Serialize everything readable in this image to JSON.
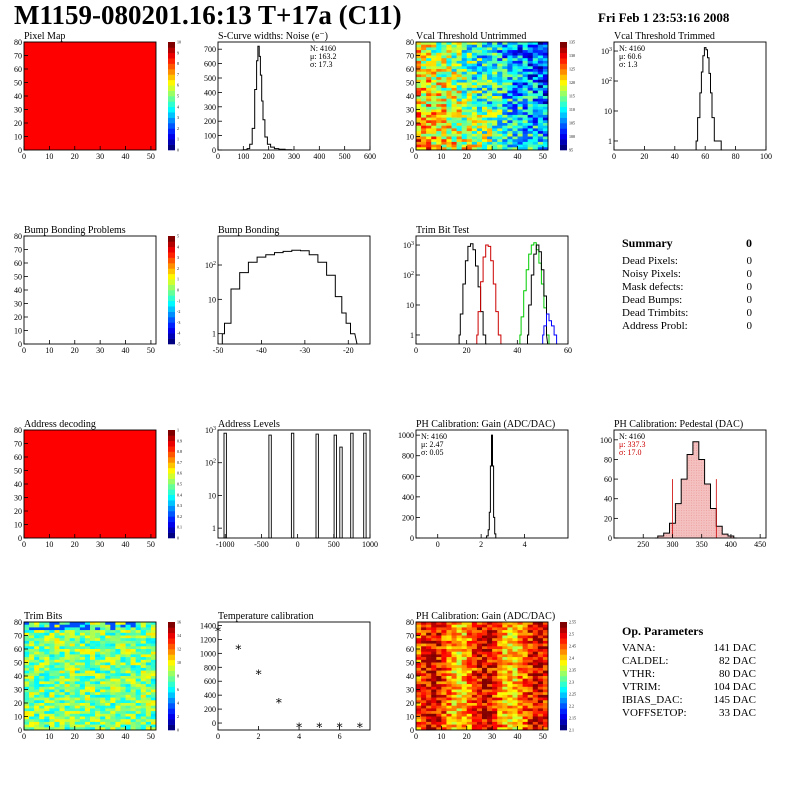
{
  "header": {
    "title": "M1159-080201.16:13 T+17a (C11)",
    "date": "Fri Feb  1 23:53:16 2008"
  },
  "summary": {
    "title": "Summary",
    "total": "0",
    "rows": [
      {
        "label": "Dead Pixels:",
        "value": "0"
      },
      {
        "label": "Noisy Pixels:",
        "value": "0"
      },
      {
        "label": "Mask defects:",
        "value": "0"
      },
      {
        "label": "Dead Bumps:",
        "value": "0"
      },
      {
        "label": "Dead Trimbits:",
        "value": "0"
      },
      {
        "label": "Address Probl:",
        "value": "0"
      }
    ]
  },
  "op_params": {
    "title": "Op. Parameters",
    "rows": [
      {
        "label": "VANA:",
        "value": "141 DAC"
      },
      {
        "label": "CALDEL:",
        "value": "82 DAC"
      },
      {
        "label": "VTHR:",
        "value": "80 DAC"
      },
      {
        "label": "VTRIM:",
        "value": "104 DAC"
      },
      {
        "label": "IBIAS_DAC:",
        "value": "145 DAC"
      },
      {
        "label": "VOFFSETOP:",
        "value": "33 DAC"
      }
    ]
  },
  "chart_data": [
    {
      "id": "pixel-map",
      "type": "heatmap",
      "title": "Pixel Map",
      "xlim": [
        0,
        52
      ],
      "ylim": [
        0,
        80
      ],
      "xticks": [
        0,
        10,
        20,
        30,
        40,
        50
      ],
      "yticks": [
        0,
        10,
        20,
        30,
        40,
        50,
        60,
        70,
        80
      ],
      "fill": "uniform",
      "color": "#ff0000",
      "palette": {
        "min": 0,
        "max": 10,
        "ticks": [
          0,
          1,
          2,
          3,
          4,
          5,
          6,
          7,
          8,
          9,
          10
        ]
      }
    },
    {
      "id": "scurve-noise",
      "type": "line",
      "title": "S-Curve widths: Noise (e⁻)",
      "xlim": [
        0,
        600
      ],
      "ylim": [
        0,
        750
      ],
      "xticks": [
        0,
        100,
        200,
        300,
        400,
        500,
        600
      ],
      "yticks": [
        0,
        100,
        200,
        300,
        400,
        500,
        600,
        700
      ],
      "x": [
        90,
        110,
        120,
        130,
        140,
        150,
        155,
        160,
        165,
        170,
        175,
        180,
        190,
        200,
        215,
        230,
        250,
        280,
        300
      ],
      "y": [
        0,
        2,
        10,
        40,
        150,
        420,
        620,
        720,
        650,
        520,
        340,
        210,
        90,
        40,
        20,
        10,
        5,
        2,
        0
      ],
      "stats": [
        "N: 4160",
        "μ: 163.2",
        "σ: 17.3"
      ]
    },
    {
      "id": "vcal-untrimmed",
      "type": "heatmap",
      "title": "Vcal Threshold Untrimmed",
      "xlim": [
        0,
        52
      ],
      "ylim": [
        0,
        80
      ],
      "xticks": [
        0,
        10,
        20,
        30,
        40,
        50
      ],
      "yticks": [
        0,
        10,
        20,
        30,
        40,
        50,
        60,
        70,
        80
      ],
      "fill": "noise-gradient",
      "palette": {
        "min": 95,
        "max": 135,
        "ticks": [
          95,
          100,
          105,
          110,
          115,
          120,
          125,
          130,
          135
        ]
      }
    },
    {
      "id": "vcal-trimmed",
      "type": "line",
      "title": "Vcal Threshold Trimmed",
      "xlim": [
        0,
        100
      ],
      "ylim": [
        0.5,
        2000
      ],
      "log_y": true,
      "xticks": [
        0,
        20,
        40,
        60,
        80,
        100
      ],
      "yticks": [
        1,
        10,
        100,
        1000
      ],
      "x": [
        54,
        56,
        57,
        58,
        59,
        60,
        61,
        62,
        63,
        64,
        65,
        67,
        70,
        71
      ],
      "y": [
        1,
        6,
        40,
        200,
        700,
        1300,
        1100,
        600,
        180,
        40,
        6,
        1,
        1,
        0.5
      ],
      "stats": [
        "N: 4160",
        "μ: 60.6",
        "σ:  1.3"
      ]
    },
    {
      "id": "bump-bonding-problems",
      "type": "heatmap",
      "title": "Bump Bonding Problems",
      "xlim": [
        0,
        52
      ],
      "ylim": [
        0,
        80
      ],
      "xticks": [
        0,
        10,
        20,
        30,
        40,
        50
      ],
      "yticks": [
        0,
        10,
        20,
        30,
        40,
        50,
        60,
        70,
        80
      ],
      "fill": "empty",
      "palette": {
        "min": -5,
        "max": 5,
        "ticks": [
          -5,
          -4,
          -3,
          -2,
          -1,
          0,
          1,
          2,
          3,
          4,
          5
        ]
      }
    },
    {
      "id": "bump-bonding",
      "type": "line",
      "title": "Bump Bonding",
      "xlim": [
        -50,
        -15
      ],
      "ylim": [
        0.5,
        700
      ],
      "log_y": true,
      "xticks": [
        -50,
        -40,
        -30,
        -20
      ],
      "yticks": [
        1,
        10,
        100
      ],
      "x": [
        -49,
        -48,
        -46,
        -44,
        -42,
        -40,
        -38,
        -36,
        -34,
        -32,
        -30,
        -28,
        -26,
        -24,
        -22,
        -21,
        -20,
        -19,
        -18
      ],
      "y": [
        1,
        2,
        20,
        60,
        120,
        170,
        200,
        230,
        250,
        270,
        260,
        200,
        120,
        50,
        12,
        4,
        2,
        1,
        1
      ]
    },
    {
      "id": "trim-bit-test",
      "type": "line",
      "title": "Trim Bit Test",
      "xlim": [
        0,
        60
      ],
      "ylim": [
        0.5,
        2000
      ],
      "log_y": true,
      "xticks": [
        0,
        20,
        40,
        60
      ],
      "yticks": [
        1,
        10,
        100,
        1000
      ],
      "series": [
        {
          "color": "#000000",
          "x": [
            17,
            18,
            19,
            20,
            21,
            22,
            23,
            24,
            25,
            26,
            27,
            28
          ],
          "y": [
            1,
            5,
            50,
            300,
            900,
            1100,
            700,
            200,
            40,
            6,
            1,
            0.5
          ]
        },
        {
          "color": "#cc0000",
          "x": [
            24,
            25,
            26,
            27,
            28,
            29,
            30,
            31,
            32,
            33,
            34
          ],
          "y": [
            1,
            6,
            60,
            400,
            1000,
            900,
            300,
            50,
            6,
            1,
            0.5
          ]
        },
        {
          "color": "#00cc00",
          "x": [
            41,
            42,
            43,
            44,
            45,
            46,
            47,
            48,
            49,
            50,
            51,
            52,
            53
          ],
          "y": [
            1,
            4,
            30,
            150,
            500,
            1000,
            1200,
            700,
            250,
            50,
            8,
            1,
            0.5
          ]
        },
        {
          "color": "#000000",
          "x": [
            44,
            45,
            46,
            47,
            48,
            49,
            50,
            51,
            52
          ],
          "y": [
            1,
            10,
            100,
            500,
            1000,
            600,
            150,
            20,
            1
          ]
        },
        {
          "color": "#0000ff",
          "x": [
            50,
            51,
            52,
            53,
            54,
            55,
            56
          ],
          "y": [
            1,
            2,
            5,
            3,
            2,
            1,
            0.5
          ]
        }
      ]
    },
    {
      "id": "address-decoding",
      "type": "heatmap",
      "title": "Address decoding",
      "xlim": [
        0,
        52
      ],
      "ylim": [
        0,
        80
      ],
      "xticks": [
        0,
        10,
        20,
        30,
        40,
        50
      ],
      "yticks": [
        0,
        10,
        20,
        30,
        40,
        50,
        60,
        70,
        80
      ],
      "fill": "uniform",
      "color": "#ff0000",
      "palette": {
        "min": 0,
        "max": 1,
        "ticks": [
          0,
          0.1,
          0.2,
          0.3,
          0.4,
          0.5,
          0.6,
          0.7,
          0.8,
          0.9,
          1
        ]
      }
    },
    {
      "id": "address-levels",
      "type": "bar",
      "title": "Address Levels",
      "xlim": [
        -1100,
        1000
      ],
      "ylim": [
        0.5,
        1000
      ],
      "log_y": true,
      "xticks": [
        -1000,
        -500,
        0,
        500,
        1000
      ],
      "yticks": [
        1,
        10,
        100,
        1000
      ],
      "spikes": [
        {
          "x": -1000,
          "y": 800
        },
        {
          "x": -380,
          "y": 700
        },
        {
          "x": -70,
          "y": 800
        },
        {
          "x": 270,
          "y": 750
        },
        {
          "x": 520,
          "y": 700
        },
        {
          "x": 600,
          "y": 300
        },
        {
          "x": 750,
          "y": 800
        },
        {
          "x": 930,
          "y": 800
        }
      ]
    },
    {
      "id": "ph-gain",
      "type": "line",
      "title": "PH Calibration: Gain (ADC/DAC)",
      "xlim": [
        -1,
        6
      ],
      "ylim": [
        0,
        1050
      ],
      "xticks": [
        0,
        2,
        4
      ],
      "yticks": [
        0,
        200,
        400,
        600,
        800,
        1000
      ],
      "x": [
        2.2,
        2.3,
        2.35,
        2.4,
        2.45,
        2.5,
        2.55,
        2.6,
        2.65,
        2.7
      ],
      "y": [
        0,
        20,
        80,
        250,
        700,
        1000,
        700,
        200,
        40,
        0
      ],
      "stats": [
        "N: 4160",
        "μ: 2.47",
        "σ: 0.05"
      ]
    },
    {
      "id": "ph-pedestal",
      "type": "area",
      "title": "PH Calibration: Pedestal (DAC)",
      "xlim": [
        200,
        460
      ],
      "ylim": [
        0,
        110
      ],
      "xticks": [
        250,
        300,
        350,
        400,
        450
      ],
      "yticks": [
        0,
        20,
        40,
        60,
        80,
        100
      ],
      "x": [
        270,
        280,
        290,
        300,
        310,
        320,
        330,
        340,
        350,
        360,
        370,
        380,
        390,
        400,
        410
      ],
      "y": [
        0,
        2,
        5,
        15,
        35,
        60,
        85,
        98,
        80,
        55,
        30,
        12,
        4,
        2,
        0
      ],
      "fit_range": [
        300,
        375
      ],
      "stats": [
        "N: 4160",
        "μ: 337.3",
        "σ: 17.0"
      ]
    },
    {
      "id": "trim-bits",
      "type": "heatmap",
      "title": "Trim Bits",
      "xlim": [
        0,
        52
      ],
      "ylim": [
        0,
        80
      ],
      "xticks": [
        0,
        10,
        20,
        30,
        40,
        50
      ],
      "yticks": [
        0,
        10,
        20,
        30,
        40,
        50,
        60,
        70,
        80
      ],
      "fill": "noise-green",
      "palette": {
        "min": 0,
        "max": 16,
        "ticks": [
          0,
          2,
          4,
          6,
          8,
          10,
          12,
          14,
          16
        ]
      }
    },
    {
      "id": "temperature-calibration",
      "type": "scatter",
      "title": "Temperature calibration",
      "xlim": [
        0,
        7.5
      ],
      "ylim": [
        -100,
        1450
      ],
      "xticks": [
        0,
        2,
        4,
        6
      ],
      "yticks": [
        0,
        200,
        400,
        600,
        800,
        1000,
        1200,
        1400
      ],
      "x": [
        0,
        1,
        2,
        3,
        4,
        5,
        6,
        7
      ],
      "y": [
        1350,
        1090,
        730,
        320,
        -30,
        -30,
        -30,
        -30
      ]
    },
    {
      "id": "ph-gain-map",
      "type": "heatmap",
      "title": "PH Calibration: Gain (ADC/DAC)",
      "xlim": [
        0,
        52
      ],
      "ylim": [
        0,
        80
      ],
      "xticks": [
        0,
        10,
        20,
        30,
        40,
        50
      ],
      "yticks": [
        0,
        10,
        20,
        30,
        40,
        50,
        60,
        70,
        80
      ],
      "fill": "noise-red",
      "palette": {
        "min": 2.1,
        "max": 2.55,
        "ticks": [
          2.1,
          2.15,
          2.2,
          2.25,
          2.3,
          2.35,
          2.4,
          2.45,
          2.5,
          2.55
        ]
      }
    }
  ]
}
